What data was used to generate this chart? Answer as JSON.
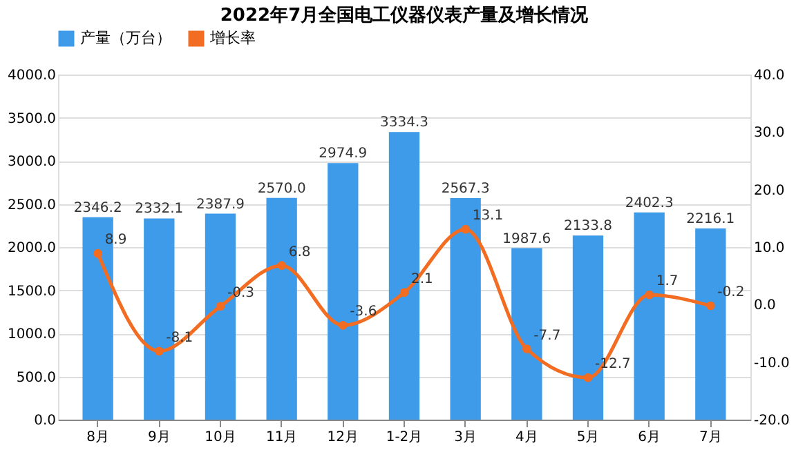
{
  "chart_data": {
    "type": "bar",
    "title": "2022年7月全国电工仪器仪表产量及增长情况",
    "categories": [
      "8月",
      "9月",
      "10月",
      "11月",
      "12月",
      "1-2月",
      "3月",
      "4月",
      "5月",
      "6月",
      "7月"
    ],
    "series": [
      {
        "name": "产量（万台）",
        "color": "#3d9be9",
        "values": [
          2346.2,
          2332.1,
          2387.9,
          2570.0,
          2974.9,
          3334.3,
          2567.3,
          1987.6,
          2133.8,
          2402.3,
          2216.1
        ],
        "value_labels": [
          "2346.2",
          "2332.1",
          "2387.9",
          "2570.0",
          "2974.9",
          "3334.3",
          "2567.3",
          "1987.6",
          "2133.8",
          "2402.3",
          "2216.1"
        ]
      },
      {
        "name": "增长率",
        "type": "line",
        "axis": "y2",
        "color": "#f26c22",
        "marker": "circle",
        "values": [
          8.9,
          -8.1,
          -0.3,
          6.8,
          -3.6,
          2.1,
          13.1,
          -7.7,
          -12.7,
          1.7,
          -0.2
        ],
        "value_labels": [
          "8.9",
          "-8.1",
          "-0.3",
          "6.8",
          "-3.6",
          "2.1",
          "13.1",
          "-7.7",
          "-12.7",
          "1.7",
          "-0.2"
        ]
      }
    ],
    "ylim": [
      0,
      4000
    ],
    "yticks": [
      {
        "value": 0,
        "label": "0.0"
      },
      {
        "value": 500,
        "label": "500.0"
      },
      {
        "value": 1000,
        "label": "1000.0"
      },
      {
        "value": 1500,
        "label": "1500.0"
      },
      {
        "value": 2000,
        "label": "2000.0"
      },
      {
        "value": 2500,
        "label": "2500.0"
      },
      {
        "value": 3000,
        "label": "3000.0"
      },
      {
        "value": 3500,
        "label": "3500.0"
      },
      {
        "value": 4000,
        "label": "4000.0"
      }
    ],
    "y2lim": [
      -20,
      40
    ],
    "y2ticks": [
      {
        "value": -20,
        "label": "-20.0"
      },
      {
        "value": -10,
        "label": "-10.0"
      },
      {
        "value": 0,
        "label": "0.0"
      },
      {
        "value": 10,
        "label": "10.0"
      },
      {
        "value": 20,
        "label": "20.0"
      },
      {
        "value": 30,
        "label": "30.0"
      },
      {
        "value": 40,
        "label": "40.0"
      }
    ],
    "grid": "y",
    "legend": "top"
  }
}
